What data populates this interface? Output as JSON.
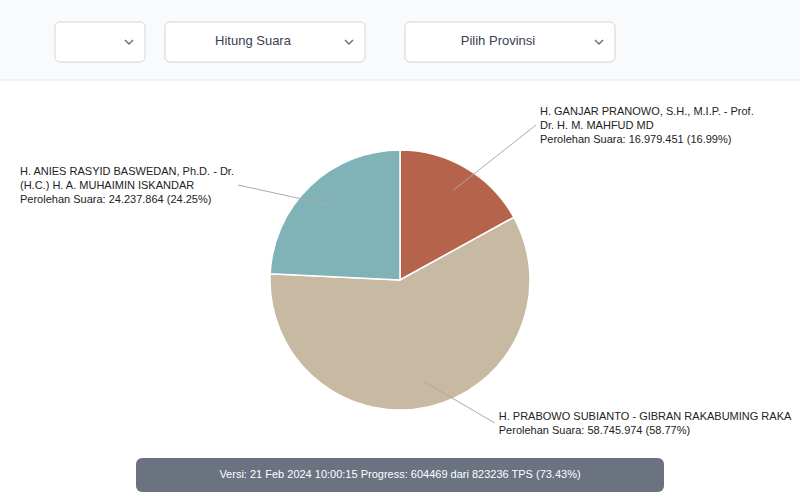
{
  "chart_data": {
    "type": "pie",
    "values": [
      16.99,
      58.77,
      24.25
    ],
    "colors": [
      "#b5634a",
      "#c8b9a2",
      "#7fb3b8"
    ],
    "annotations": [
      [
        "H. GANJAR PRANOWO, S.H., M.I.P. - Prof.",
        "Dr. H. M. MAHFUD MD",
        "Perolehan Suara: 16.979.451 (16.99%)"
      ],
      [
        "H. PRABOWO SUBIANTO - GIBRAN RAKABUMING RAKA",
        "Perolehan Suara: 58.745.974 (58.77%)"
      ],
      [
        "H. ANIES RASYID BASWEDAN, Ph.D. - Dr.",
        "(H.C.) H. A. MUHAIMIN ISKANDAR",
        "Perolehan Suara: 24.237.864 (24.25%)"
      ]
    ],
    "controls": [
      "Hitung Suara",
      "Pilih Provinsi"
    ],
    "footer": "Versi: 21 Feb 2024 10:00:15 Progress: 604469 dari 823236 TPS (73.43%)"
  }
}
